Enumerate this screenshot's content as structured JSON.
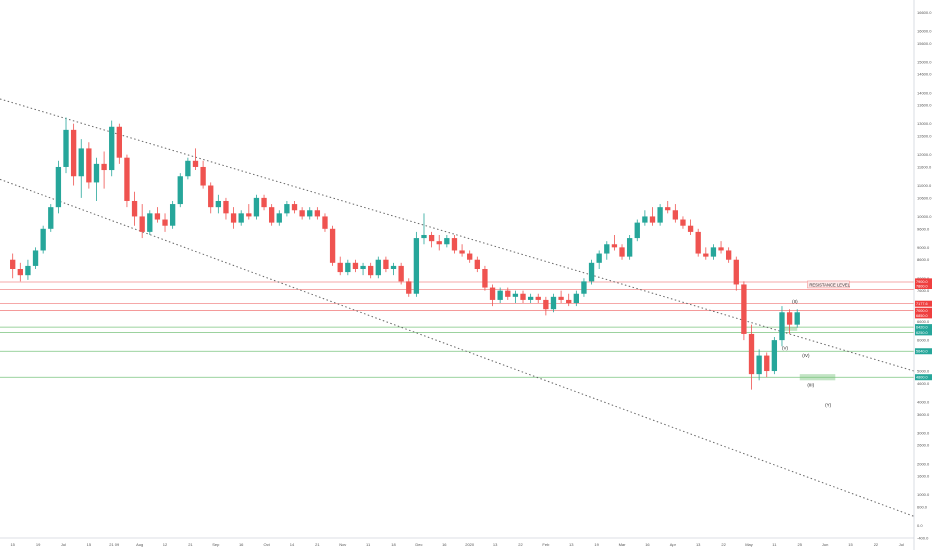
{
  "colors": {
    "up": "#26a69a",
    "down": "#ef5350",
    "grid": "#f0f3f7",
    "axis": "#d1d4dc",
    "text": "#555555",
    "channel": "#666666",
    "resistance": "#f28b8b",
    "support": "#7bc47f",
    "price_red": "#ef3f3f",
    "price_green": "#26a69a"
  },
  "chart_data": {
    "type": "candlestick",
    "title": "",
    "xlabel": "",
    "ylabel": "",
    "grid": false,
    "x_range": [
      -7.5,
      28.5
    ],
    "ylim": [
      -400,
      17000
    ],
    "y_ticks": [
      16600,
      16000,
      15600,
      15000,
      14600,
      14000,
      13600,
      13000,
      12600,
      12000,
      11600,
      11000,
      10600,
      10000,
      9600,
      9000,
      8600,
      8000,
      7600,
      7000,
      6600,
      6000,
      5600,
      5000,
      4600,
      4000,
      3600,
      3000,
      2600,
      2000,
      1600,
      1000,
      600,
      0,
      -400
    ],
    "y_tick_labels": [
      "16600.0",
      "16000.0",
      "15600.0",
      "15000.0",
      "14600.0",
      "14000.0",
      "13600.0",
      "13000.0",
      "12600.0",
      "12000.0",
      "11600.0",
      "11000.0",
      "10600.0",
      "10000.0",
      "9600.0",
      "9000.0",
      "8600.0",
      "8000.0",
      "7600.0",
      "7000.0",
      "6600.0",
      "6000.0",
      "5600.0",
      "5000.0",
      "4600.0",
      "4000.0",
      "3600.0",
      "3000.0",
      "2600.0",
      "2000.0",
      "1600.0",
      "1000.0",
      "600.0",
      "0.0",
      "-400.0"
    ],
    "x_ticks": [
      -7,
      -6,
      -5,
      -4,
      -3,
      -2,
      -1,
      0,
      1,
      2,
      3,
      4,
      5,
      6,
      7,
      8,
      9,
      10,
      11,
      12,
      13,
      14,
      15,
      16,
      17,
      18,
      19,
      20,
      21,
      22,
      23,
      24,
      25,
      26,
      27,
      28
    ],
    "x_tick_labels": [
      "15",
      "19",
      "Jul",
      "15",
      "21 09",
      "Aug",
      "12",
      "21",
      "Sep",
      "16",
      "Oct",
      "14",
      "21",
      "Nov",
      "11",
      "18",
      "Dec",
      "16",
      "2020",
      "13",
      "22",
      "Feb",
      "13",
      "19",
      "Mar",
      "16",
      "Apr",
      "13",
      "22",
      "May",
      "11",
      "25",
      "Jun",
      "15",
      "22",
      "Jul"
    ],
    "candles": [
      {
        "x": -7.0,
        "o": 8600,
        "h": 8800,
        "l": 8000,
        "c": 8300
      },
      {
        "x": -6.7,
        "o": 8300,
        "h": 8500,
        "l": 7900,
        "c": 8100
      },
      {
        "x": -6.4,
        "o": 8100,
        "h": 8600,
        "l": 7950,
        "c": 8400
      },
      {
        "x": -6.1,
        "o": 8400,
        "h": 9000,
        "l": 8300,
        "c": 8900
      },
      {
        "x": -5.8,
        "o": 8900,
        "h": 9700,
        "l": 8800,
        "c": 9600
      },
      {
        "x": -5.5,
        "o": 9600,
        "h": 10400,
        "l": 9500,
        "c": 10300
      },
      {
        "x": -5.2,
        "o": 10300,
        "h": 11800,
        "l": 10100,
        "c": 11600
      },
      {
        "x": -4.9,
        "o": 11600,
        "h": 13200,
        "l": 11400,
        "c": 12800
      },
      {
        "x": -4.6,
        "o": 12800,
        "h": 13000,
        "l": 11000,
        "c": 11300
      },
      {
        "x": -4.3,
        "o": 11300,
        "h": 12500,
        "l": 10600,
        "c": 12200
      },
      {
        "x": -4.0,
        "o": 12200,
        "h": 12400,
        "l": 10900,
        "c": 11100
      },
      {
        "x": -3.7,
        "o": 11100,
        "h": 11900,
        "l": 10500,
        "c": 11700
      },
      {
        "x": -3.4,
        "o": 11700,
        "h": 12100,
        "l": 10900,
        "c": 11500
      },
      {
        "x": -3.1,
        "o": 11500,
        "h": 13100,
        "l": 11300,
        "c": 12900
      },
      {
        "x": -2.8,
        "o": 12900,
        "h": 13000,
        "l": 11700,
        "c": 11900
      },
      {
        "x": -2.5,
        "o": 11900,
        "h": 12000,
        "l": 10300,
        "c": 10500
      },
      {
        "x": -2.2,
        "o": 10500,
        "h": 10800,
        "l": 9700,
        "c": 10000
      },
      {
        "x": -1.9,
        "o": 10000,
        "h": 10400,
        "l": 9300,
        "c": 9500
      },
      {
        "x": -1.6,
        "o": 9500,
        "h": 10200,
        "l": 9400,
        "c": 10100
      },
      {
        "x": -1.3,
        "o": 10100,
        "h": 10300,
        "l": 9800,
        "c": 9900
      },
      {
        "x": -1.0,
        "o": 9900,
        "h": 10100,
        "l": 9500,
        "c": 9700
      },
      {
        "x": -0.7,
        "o": 9700,
        "h": 10500,
        "l": 9600,
        "c": 10400
      },
      {
        "x": -0.4,
        "o": 10400,
        "h": 11400,
        "l": 10300,
        "c": 11300
      },
      {
        "x": -0.1,
        "o": 11300,
        "h": 11900,
        "l": 11200,
        "c": 11800
      },
      {
        "x": 0.2,
        "o": 11800,
        "h": 12200,
        "l": 11500,
        "c": 11600
      },
      {
        "x": 0.5,
        "o": 11600,
        "h": 11800,
        "l": 10900,
        "c": 11000
      },
      {
        "x": 0.8,
        "o": 11000,
        "h": 11100,
        "l": 10100,
        "c": 10300
      },
      {
        "x": 1.1,
        "o": 10300,
        "h": 10700,
        "l": 10100,
        "c": 10500
      },
      {
        "x": 1.4,
        "o": 10500,
        "h": 10600,
        "l": 9900,
        "c": 10100
      },
      {
        "x": 1.7,
        "o": 10100,
        "h": 10300,
        "l": 9600,
        "c": 9800
      },
      {
        "x": 2.0,
        "o": 9800,
        "h": 10200,
        "l": 9700,
        "c": 10100
      },
      {
        "x": 2.3,
        "o": 10100,
        "h": 10400,
        "l": 9900,
        "c": 10000
      },
      {
        "x": 2.6,
        "o": 10000,
        "h": 10700,
        "l": 9900,
        "c": 10600
      },
      {
        "x": 2.9,
        "o": 10600,
        "h": 10700,
        "l": 10200,
        "c": 10300
      },
      {
        "x": 3.2,
        "o": 10300,
        "h": 10400,
        "l": 9700,
        "c": 9800
      },
      {
        "x": 3.5,
        "o": 9800,
        "h": 10200,
        "l": 9700,
        "c": 10100
      },
      {
        "x": 3.8,
        "o": 10100,
        "h": 10500,
        "l": 10000,
        "c": 10400
      },
      {
        "x": 4.1,
        "o": 10400,
        "h": 10500,
        "l": 10100,
        "c": 10200
      },
      {
        "x": 4.4,
        "o": 10200,
        "h": 10300,
        "l": 9900,
        "c": 10000
      },
      {
        "x": 4.7,
        "o": 10000,
        "h": 10300,
        "l": 9900,
        "c": 10200
      },
      {
        "x": 5.0,
        "o": 10200,
        "h": 10300,
        "l": 9900,
        "c": 10000
      },
      {
        "x": 5.3,
        "o": 10000,
        "h": 10100,
        "l": 9500,
        "c": 9600
      },
      {
        "x": 5.6,
        "o": 9600,
        "h": 9700,
        "l": 8400,
        "c": 8500
      },
      {
        "x": 5.9,
        "o": 8500,
        "h": 8700,
        "l": 8100,
        "c": 8200
      },
      {
        "x": 6.2,
        "o": 8200,
        "h": 8600,
        "l": 8100,
        "c": 8500
      },
      {
        "x": 6.5,
        "o": 8500,
        "h": 8600,
        "l": 8200,
        "c": 8300
      },
      {
        "x": 6.8,
        "o": 8300,
        "h": 8500,
        "l": 8100,
        "c": 8400
      },
      {
        "x": 7.1,
        "o": 8400,
        "h": 8500,
        "l": 8000,
        "c": 8100
      },
      {
        "x": 7.4,
        "o": 8100,
        "h": 8700,
        "l": 8000,
        "c": 8600
      },
      {
        "x": 7.7,
        "o": 8600,
        "h": 8700,
        "l": 8200,
        "c": 8300
      },
      {
        "x": 8.0,
        "o": 8300,
        "h": 8500,
        "l": 8100,
        "c": 8400
      },
      {
        "x": 8.3,
        "o": 8400,
        "h": 8500,
        "l": 7800,
        "c": 7900
      },
      {
        "x": 8.6,
        "o": 7900,
        "h": 8000,
        "l": 7400,
        "c": 7500
      },
      {
        "x": 8.9,
        "o": 7500,
        "h": 9500,
        "l": 7400,
        "c": 9300
      },
      {
        "x": 9.2,
        "o": 9300,
        "h": 10100,
        "l": 9100,
        "c": 9400
      },
      {
        "x": 9.5,
        "o": 9400,
        "h": 9500,
        "l": 9000,
        "c": 9200
      },
      {
        "x": 9.8,
        "o": 9200,
        "h": 9400,
        "l": 8900,
        "c": 9100
      },
      {
        "x": 10.1,
        "o": 9100,
        "h": 9400,
        "l": 9000,
        "c": 9300
      },
      {
        "x": 10.4,
        "o": 9300,
        "h": 9400,
        "l": 8800,
        "c": 8900
      },
      {
        "x": 10.7,
        "o": 8900,
        "h": 9100,
        "l": 8700,
        "c": 8800
      },
      {
        "x": 11.0,
        "o": 8800,
        "h": 8900,
        "l": 8500,
        "c": 8600
      },
      {
        "x": 11.3,
        "o": 8600,
        "h": 8700,
        "l": 8200,
        "c": 8300
      },
      {
        "x": 11.6,
        "o": 8300,
        "h": 8400,
        "l": 7600,
        "c": 7700
      },
      {
        "x": 11.9,
        "o": 7700,
        "h": 7800,
        "l": 7100,
        "c": 7300
      },
      {
        "x": 12.2,
        "o": 7300,
        "h": 7700,
        "l": 7200,
        "c": 7600
      },
      {
        "x": 12.5,
        "o": 7600,
        "h": 7700,
        "l": 7300,
        "c": 7400
      },
      {
        "x": 12.8,
        "o": 7400,
        "h": 7600,
        "l": 7200,
        "c": 7500
      },
      {
        "x": 13.1,
        "o": 7500,
        "h": 7600,
        "l": 7200,
        "c": 7300
      },
      {
        "x": 13.4,
        "o": 7300,
        "h": 7500,
        "l": 7200,
        "c": 7400
      },
      {
        "x": 13.7,
        "o": 7400,
        "h": 7500,
        "l": 7200,
        "c": 7300
      },
      {
        "x": 14.0,
        "o": 7300,
        "h": 7400,
        "l": 6800,
        "c": 7000
      },
      {
        "x": 14.3,
        "o": 7000,
        "h": 7500,
        "l": 6900,
        "c": 7400
      },
      {
        "x": 14.6,
        "o": 7400,
        "h": 7600,
        "l": 7200,
        "c": 7300
      },
      {
        "x": 14.9,
        "o": 7300,
        "h": 7500,
        "l": 7100,
        "c": 7200
      },
      {
        "x": 15.2,
        "o": 7200,
        "h": 7600,
        "l": 7100,
        "c": 7500
      },
      {
        "x": 15.5,
        "o": 7500,
        "h": 8000,
        "l": 7400,
        "c": 7900
      },
      {
        "x": 15.8,
        "o": 7900,
        "h": 8600,
        "l": 7800,
        "c": 8500
      },
      {
        "x": 16.1,
        "o": 8500,
        "h": 8900,
        "l": 8300,
        "c": 8800
      },
      {
        "x": 16.4,
        "o": 8800,
        "h": 9200,
        "l": 8600,
        "c": 9100
      },
      {
        "x": 16.7,
        "o": 9100,
        "h": 9400,
        "l": 8900,
        "c": 9000
      },
      {
        "x": 17.0,
        "o": 9000,
        "h": 9100,
        "l": 8600,
        "c": 8700
      },
      {
        "x": 17.3,
        "o": 8700,
        "h": 9400,
        "l": 8600,
        "c": 9300
      },
      {
        "x": 17.6,
        "o": 9300,
        "h": 9900,
        "l": 9200,
        "c": 9800
      },
      {
        "x": 17.9,
        "o": 9800,
        "h": 10200,
        "l": 9700,
        "c": 10000
      },
      {
        "x": 18.2,
        "o": 10000,
        "h": 10300,
        "l": 9700,
        "c": 9800
      },
      {
        "x": 18.5,
        "o": 9800,
        "h": 10400,
        "l": 9700,
        "c": 10300
      },
      {
        "x": 18.8,
        "o": 10300,
        "h": 10500,
        "l": 10100,
        "c": 10200
      },
      {
        "x": 19.1,
        "o": 10200,
        "h": 10400,
        "l": 9800,
        "c": 9900
      },
      {
        "x": 19.4,
        "o": 9900,
        "h": 10000,
        "l": 9600,
        "c": 9700
      },
      {
        "x": 19.7,
        "o": 9700,
        "h": 9900,
        "l": 9400,
        "c": 9500
      },
      {
        "x": 20.0,
        "o": 9500,
        "h": 9600,
        "l": 8700,
        "c": 8800
      },
      {
        "x": 20.3,
        "o": 8800,
        "h": 9000,
        "l": 8600,
        "c": 8700
      },
      {
        "x": 20.6,
        "o": 8700,
        "h": 9100,
        "l": 8600,
        "c": 9000
      },
      {
        "x": 20.9,
        "o": 9000,
        "h": 9200,
        "l": 8800,
        "c": 8900
      },
      {
        "x": 21.2,
        "o": 8900,
        "h": 9000,
        "l": 8500,
        "c": 8600
      },
      {
        "x": 21.5,
        "o": 8600,
        "h": 8700,
        "l": 7600,
        "c": 7800
      },
      {
        "x": 21.8,
        "o": 7800,
        "h": 7900,
        "l": 6000,
        "c": 6200
      },
      {
        "x": 22.1,
        "o": 6200,
        "h": 6500,
        "l": 4400,
        "c": 4900
      },
      {
        "x": 22.4,
        "o": 4900,
        "h": 5700,
        "l": 4700,
        "c": 5500
      },
      {
        "x": 22.7,
        "o": 5500,
        "h": 5600,
        "l": 4800,
        "c": 5000
      },
      {
        "x": 23.0,
        "o": 5000,
        "h": 6100,
        "l": 4900,
        "c": 6000
      },
      {
        "x": 23.3,
        "o": 6000,
        "h": 7100,
        "l": 5800,
        "c": 6900
      },
      {
        "x": 23.6,
        "o": 6900,
        "h": 7000,
        "l": 6200,
        "c": 6500
      },
      {
        "x": 23.9,
        "o": 6500,
        "h": 7000,
        "l": 6400,
        "c": 6900
      }
    ],
    "channel_lines": [
      {
        "name": "upper",
        "x": [
          -7.5,
          28.5
        ],
        "y": [
          13800,
          5000
        ]
      },
      {
        "name": "lower",
        "x": [
          -7.5,
          28.5
        ],
        "y": [
          11200,
          300
        ]
      }
    ],
    "horizontal_levels": [
      {
        "kind": "resistance",
        "y": 7880
      },
      {
        "kind": "resistance",
        "y": 7640
      },
      {
        "kind": "resistance",
        "y": 7180
      },
      {
        "kind": "resistance",
        "y": 6960
      },
      {
        "kind": "support",
        "y": 6420
      },
      {
        "kind": "support",
        "y": 6250
      },
      {
        "kind": "support",
        "y": 5640
      },
      {
        "kind": "support",
        "y": 4800
      }
    ],
    "level_label": {
      "text": "RESISTANCE LEVEL",
      "x": 24.3,
      "y": 7800
    },
    "zones": [
      {
        "kind": "support",
        "x1": 24.0,
        "x2": 25.4,
        "y1": 4700,
        "y2": 4900
      },
      {
        "kind": "support",
        "x1": 23.3,
        "x2": 23.9,
        "y1": 6300,
        "y2": 6420
      }
    ],
    "annotations": [
      {
        "text": "(II)",
        "x": 23.7,
        "y": 7200
      },
      {
        "text": "(V)",
        "x": 23.3,
        "y": 5700
      },
      {
        "text": "(IV)",
        "x": 24.1,
        "y": 5450
      },
      {
        "text": "(III)",
        "x": 24.3,
        "y": 4500
      },
      {
        "text": "(Y)",
        "x": 25.0,
        "y": 3850
      }
    ],
    "price_labels": [
      {
        "text": "7900.0",
        "y": 7900,
        "color": "red"
      },
      {
        "text": "7800.0",
        "y": 7750,
        "color": "red"
      },
      {
        "text": "7177.6",
        "y": 7177,
        "color": "red"
      },
      {
        "text": "7000.0",
        "y": 6950,
        "color": "red"
      },
      {
        "text": "6850.0",
        "y": 6800,
        "color": "red"
      },
      {
        "text": "6420.0",
        "y": 6420,
        "color": "green"
      },
      {
        "text": "6250.0",
        "y": 6250,
        "color": "green"
      },
      {
        "text": "5640.0",
        "y": 5640,
        "color": "green"
      },
      {
        "text": "4800.0",
        "y": 4800,
        "color": "green"
      }
    ]
  }
}
